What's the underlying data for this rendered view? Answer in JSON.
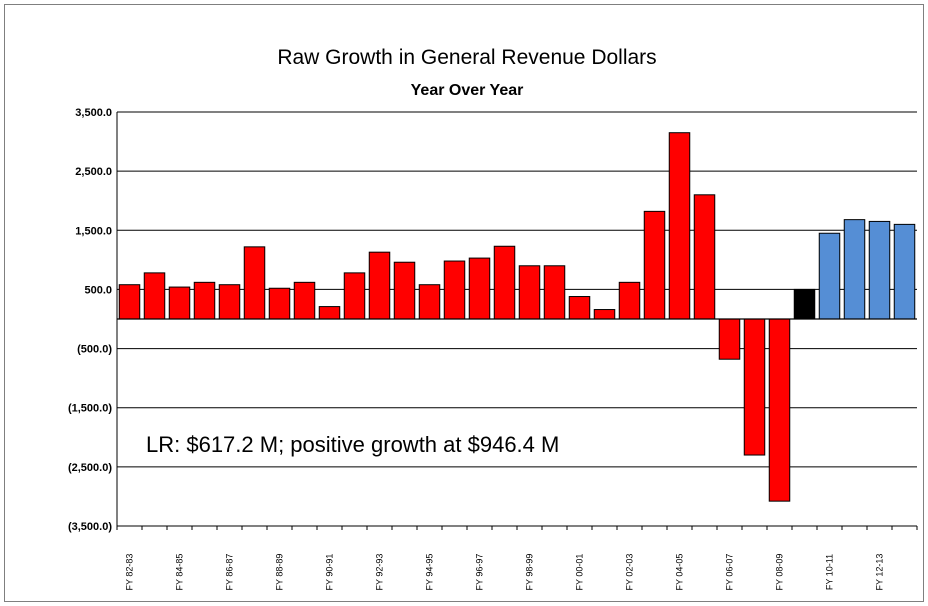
{
  "chart_data": {
    "type": "bar",
    "title": "Raw Growth in General Revenue Dollars",
    "subtitle": "Year Over Year",
    "xlabel": "",
    "ylabel": "",
    "ylim": [
      -3500,
      3500
    ],
    "y_ticks": [
      3500,
      2500,
      1500,
      500,
      -500,
      -1500,
      -2500,
      -3500
    ],
    "y_tick_labels": [
      "3,500.0",
      "2,500.0",
      "1,500.0",
      "500.0",
      "(500.0)",
      "(1,500.0)",
      "(2,500.0)",
      "(3,500.0)"
    ],
    "grid": "horizontal",
    "x_tick_labels": [
      "FY 82-83",
      "FY 84-85",
      "FY 86-87",
      "FY 88-89",
      "FY 90-91",
      "FY 92-93",
      "FY 94-95",
      "FY 96-97",
      "FY 98-99",
      "FY 00-01",
      "FY 02-03",
      "FY 04-05",
      "FY 06-07",
      "FY 08-09",
      "FY 10-11",
      "FY 12-13"
    ],
    "bar_count": 32,
    "values": [
      580,
      780,
      540,
      620,
      580,
      1220,
      520,
      620,
      210,
      780,
      1130,
      960,
      580,
      980,
      1030,
      1230,
      900,
      900,
      380,
      160,
      620,
      1820,
      3150,
      2100,
      -680,
      -2300,
      -3080,
      500,
      1450,
      1680,
      1650,
      1600
    ],
    "bar_colors": [
      "#ff0000",
      "#ff0000",
      "#ff0000",
      "#ff0000",
      "#ff0000",
      "#ff0000",
      "#ff0000",
      "#ff0000",
      "#ff0000",
      "#ff0000",
      "#ff0000",
      "#ff0000",
      "#ff0000",
      "#ff0000",
      "#ff0000",
      "#ff0000",
      "#ff0000",
      "#ff0000",
      "#ff0000",
      "#ff0000",
      "#ff0000",
      "#ff0000",
      "#ff0000",
      "#ff0000",
      "#ff0000",
      "#ff0000",
      "#ff0000",
      "#000000",
      "#558ed5",
      "#558ed5",
      "#558ed5",
      "#558ed5"
    ],
    "annotation": "LR: $617.2 M;  positive growth  at $946.4 M"
  },
  "colors": {
    "actual": "#ff0000",
    "current": "#000000",
    "projected": "#558ed5",
    "gridline": "#000000"
  }
}
